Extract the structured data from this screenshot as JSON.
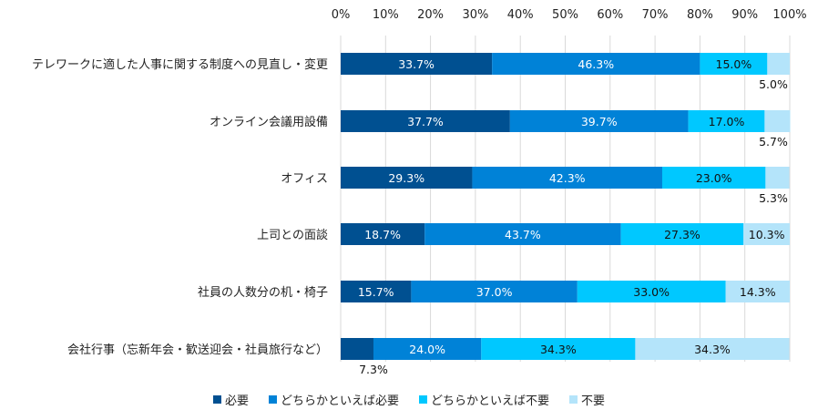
{
  "chart_data": {
    "type": "bar",
    "orientation": "horizontal",
    "stacked": true,
    "title": "",
    "xlabel": "",
    "ylabel": "",
    "xlim": [
      0,
      100
    ],
    "x_ticks": [
      "0%",
      "10%",
      "20%",
      "30%",
      "40%",
      "50%",
      "60%",
      "70%",
      "80%",
      "90%",
      "100%"
    ],
    "grid": true,
    "legend_position": "bottom",
    "categories": [
      "テレワークに適した人事に関する制度への見直し・変更",
      "オンライン会議用設備",
      "オフィス",
      "上司との面談",
      "社員の人数分の机・椅子",
      "会社行事（忘新年会・歓送迎会・社員旅行など）"
    ],
    "series": [
      {
        "name": "必要",
        "color": "#005091",
        "label_color": "#ffffff",
        "values": [
          33.7,
          37.7,
          29.3,
          18.7,
          15.7,
          7.3
        ],
        "labels": [
          "33.7%",
          "37.7%",
          "29.3%",
          "18.7%",
          "15.7%",
          "7.3%"
        ]
      },
      {
        "name": "どちらかといえば必要",
        "color": "#0082D7",
        "label_color": "#ffffff",
        "values": [
          46.3,
          39.7,
          42.3,
          43.7,
          37.0,
          24.0
        ],
        "labels": [
          "46.3%",
          "39.7%",
          "42.3%",
          "43.7%",
          "37.0%",
          "24.0%"
        ]
      },
      {
        "name": "どちらかといえば不要",
        "color": "#00C8FF",
        "label_color": "#111111",
        "values": [
          15.0,
          17.0,
          23.0,
          27.3,
          33.0,
          34.3
        ],
        "labels": [
          "15.0%",
          "17.0%",
          "23.0%",
          "27.3%",
          "33.0%",
          "34.3%"
        ]
      },
      {
        "name": "不要",
        "color": "#B4E4FA",
        "label_color": "#111111",
        "values": [
          5.0,
          5.7,
          5.3,
          10.3,
          14.3,
          34.3
        ],
        "labels": [
          "5.0%",
          "5.7%",
          "5.3%",
          "10.3%",
          "14.3%",
          "34.3%"
        ]
      }
    ]
  }
}
